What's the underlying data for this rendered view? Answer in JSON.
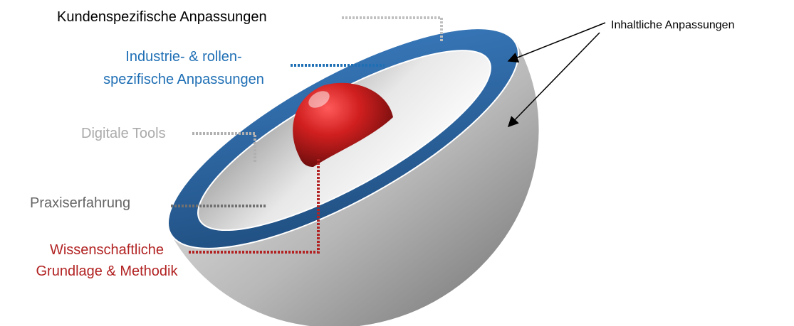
{
  "labels": [
    {
      "lines": [
        "Kundenspezifische Anpassungen"
      ]
    },
    {
      "lines": [
        "Industrie- & rollen-",
        "spezifische Anpassungen"
      ]
    },
    {
      "lines": [
        "Digitale Tools"
      ]
    },
    {
      "lines": [
        "Praxiserfahrung"
      ]
    },
    {
      "lines": [
        "Wissenschaftliche",
        "Grundlage & Methodik"
      ]
    }
  ],
  "callout": {
    "text": "Inhaltliche Anpassungen"
  }
}
